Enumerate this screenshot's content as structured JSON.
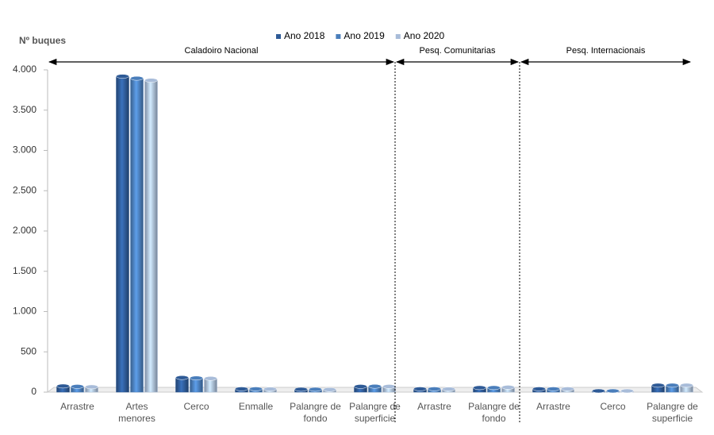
{
  "chart_data": {
    "type": "bar",
    "y_label": "Nº  buques",
    "annotations": [
      "Caladoiro Nacional",
      "Pesq. Comunitarias",
      "Pesq. Internacionais"
    ],
    "categories": [
      "Arrastre",
      "Artes menores",
      "Cerco",
      "Enmalle",
      "Palangre de fondo",
      "Palangre de superficie",
      "Arrastre",
      "Palangre de fondo",
      "Arrastre",
      "Cerco",
      "Palangre de superficie"
    ],
    "series": [
      {
        "name": "Ano 2018",
        "color": "#2e5a96",
        "values": [
          75,
          3920,
          180,
          40,
          35,
          70,
          40,
          55,
          40,
          15,
          85
        ]
      },
      {
        "name": "Ano 2019",
        "color": "#4a7ebb",
        "values": [
          70,
          3895,
          175,
          40,
          35,
          72,
          40,
          55,
          40,
          15,
          85
        ]
      },
      {
        "name": "Ano 2020",
        "color": "#a8bcd9",
        "values": [
          65,
          3870,
          170,
          38,
          32,
          70,
          38,
          60,
          40,
          15,
          85
        ]
      }
    ],
    "ylim": [
      0,
      4000
    ],
    "yticks": [
      0,
      500,
      {
        "value": 1000,
        "label": "1.000"
      },
      {
        "value": 1500,
        "label": "1.500"
      },
      {
        "value": 2000,
        "label": "2.000"
      },
      {
        "value": 2500,
        "label": "2.500"
      },
      {
        "value": 3000,
        "label": "3.000"
      },
      {
        "value": 3500,
        "label": "3.500"
      },
      {
        "value": 4000,
        "label": "4.000"
      }
    ],
    "grid": false,
    "legend": "top"
  }
}
